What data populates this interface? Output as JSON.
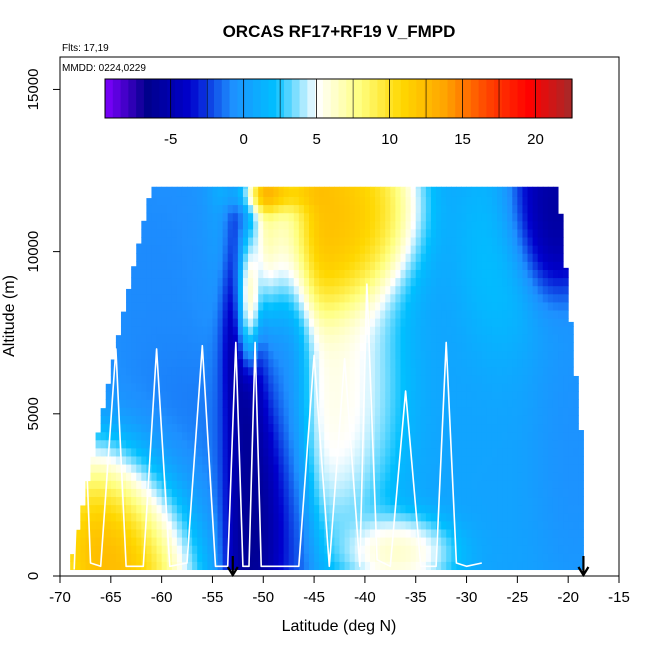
{
  "chart_data": {
    "type": "heatmap",
    "title": "ORCAS RF17+RF19 V_FMPD",
    "flights_label": "Flts: 17,19",
    "date_label": "MMDD: 0224,0229",
    "xlabel": "Latitude (deg N)",
    "ylabel": "Altitude (m)",
    "xlim": [
      -70,
      -15
    ],
    "ylim": [
      0,
      16000
    ],
    "x_ticks": [
      -70,
      -65,
      -60,
      -55,
      -50,
      -45,
      -40,
      -35,
      -30,
      -25,
      -20,
      -15
    ],
    "y_ticks": [
      0,
      5000,
      10000,
      15000
    ],
    "colorbar": {
      "range": [
        -9.5,
        22.5
      ],
      "ticks": [
        -5,
        0,
        5,
        10,
        15,
        20
      ],
      "colors": [
        "#7f00ff",
        "#00008b",
        "#0000cd",
        "#1e90ff",
        "#00bfff",
        "#ffffff",
        "#ffff80",
        "#ffd700",
        "#ffa500",
        "#ff4500",
        "#ff0000",
        "#a52a2a"
      ]
    },
    "field_blobs": [
      {
        "lat": -63.5,
        "alt": 1000,
        "value": 16,
        "r_lat": 5,
        "r_alt": 2200
      },
      {
        "lat": -58,
        "alt": 3500,
        "value": -1.5,
        "r_lat": 6,
        "r_alt": 3000
      },
      {
        "lat": -61,
        "alt": 9500,
        "value": -1,
        "r_lat": 6,
        "r_alt": 3000
      },
      {
        "lat": -52,
        "alt": 7000,
        "value": -8,
        "r_lat": 1.5,
        "r_alt": 6000
      },
      {
        "lat": -50.5,
        "alt": 2500,
        "value": -8,
        "r_lat": 2.5,
        "r_alt": 3000
      },
      {
        "lat": -51.5,
        "alt": 8500,
        "value": 18,
        "r_lat": 0.9,
        "r_alt": 1700
      },
      {
        "lat": -47.5,
        "alt": 6500,
        "value": -2.5,
        "r_lat": 2,
        "r_alt": 7000
      },
      {
        "lat": -45.5,
        "alt": 10500,
        "value": 14,
        "r_lat": 5,
        "r_alt": 2200
      },
      {
        "lat": -42,
        "alt": 11000,
        "value": 13,
        "r_lat": 5,
        "r_alt": 2000
      },
      {
        "lat": -48.5,
        "alt": 11800,
        "value": 19,
        "r_lat": 3,
        "r_alt": 500
      },
      {
        "lat": -42,
        "alt": 5500,
        "value": 7,
        "r_lat": 5,
        "r_alt": 3000
      },
      {
        "lat": -36,
        "alt": 800,
        "value": 9,
        "r_lat": 4,
        "r_alt": 900
      },
      {
        "lat": -30,
        "alt": 4500,
        "value": 0.5,
        "r_lat": 9,
        "r_alt": 5000
      },
      {
        "lat": -22,
        "alt": 11000,
        "value": -7,
        "r_lat": 3.5,
        "r_alt": 1800
      },
      {
        "lat": -20,
        "alt": 4000,
        "value": -1,
        "r_lat": 3,
        "r_alt": 3000
      },
      {
        "lat": -27,
        "alt": 9500,
        "value": 3,
        "r_lat": 3,
        "r_alt": 2500
      }
    ],
    "flight_track": [
      [
        -68.6,
        200
      ],
      [
        -67.8,
        6900
      ],
      [
        -67,
        400
      ],
      [
        -66,
        300
      ],
      [
        -64.5,
        7000
      ],
      [
        -63.5,
        300
      ],
      [
        -61.8,
        300
      ],
      [
        -60.5,
        7000
      ],
      [
        -59.2,
        300
      ],
      [
        -57.5,
        400
      ],
      [
        -56,
        7100
      ],
      [
        -54.7,
        300
      ],
      [
        -53.5,
        300
      ],
      [
        -52.7,
        7200
      ],
      [
        -52,
        300
      ],
      [
        -51.4,
        300
      ],
      [
        -50.8,
        7200
      ],
      [
        -50.2,
        300
      ],
      [
        -46.5,
        300
      ],
      [
        -45,
        6800
      ],
      [
        -43.5,
        300
      ],
      [
        -42,
        6700
      ],
      [
        -40.5,
        300
      ],
      [
        -39.8,
        9000
      ],
      [
        -38.8,
        500
      ],
      [
        -37.5,
        300
      ],
      [
        -36,
        5700
      ],
      [
        -34.5,
        300
      ],
      [
        -33,
        300
      ],
      [
        -32,
        7200
      ],
      [
        -31,
        400
      ],
      [
        -30,
        300
      ],
      [
        -28.5,
        400
      ]
    ],
    "end_markers_lat": [
      -53,
      -18.5
    ]
  }
}
